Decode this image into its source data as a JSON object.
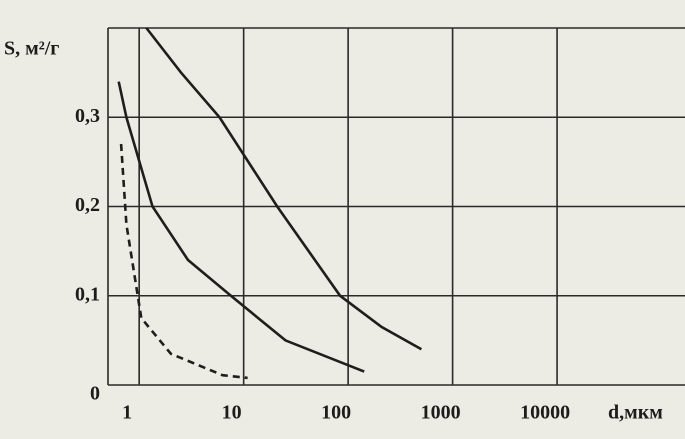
{
  "chart_data": {
    "type": "line",
    "log_x": true,
    "grid": true,
    "color": "#1e1e1e",
    "ylabel": "S, м²/г",
    "xlabel": "d,мкм",
    "xlim": [
      0.6,
      200000
    ],
    "xticks": [
      1,
      10,
      100,
      1000,
      10000
    ],
    "ylim": [
      0,
      0.4
    ],
    "yticks": [
      {
        "value": 0,
        "label": "0"
      },
      {
        "value": 0.1,
        "label": "0,1"
      },
      {
        "value": 0.2,
        "label": "0,2"
      },
      {
        "value": 0.3,
        "label": "0,3"
      }
    ],
    "series": [
      {
        "x": [
          1.4,
          3,
          7,
          25,
          100,
          250,
          600
        ],
        "values": [
          0.4,
          0.35,
          0.3,
          0.2,
          0.1,
          0.065,
          0.04
        ],
        "dashed": false
      },
      {
        "x": [
          0.76,
          0.9,
          1.6,
          3.5,
          9,
          30,
          170
        ],
        "values": [
          0.34,
          0.3,
          0.2,
          0.14,
          0.1,
          0.05,
          0.015
        ],
        "dashed": false
      },
      {
        "x": [
          0.8,
          0.9,
          1.25,
          2.4,
          7.5,
          13
        ],
        "values": [
          0.27,
          0.18,
          0.075,
          0.035,
          0.011,
          0.008
        ],
        "dashed": true
      }
    ]
  }
}
